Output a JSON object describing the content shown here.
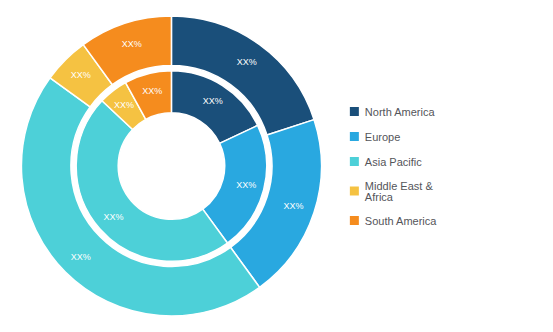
{
  "chart_data": {
    "type": "pie",
    "categories": [
      "North America",
      "Europe",
      "Asia Pacific",
      "Middle East &\nAfrica",
      "South America"
    ],
    "colors": [
      "#1a4f7a",
      "#29a8e0",
      "#4dd0d8",
      "#f5c242",
      "#f58c1e"
    ],
    "series": [
      {
        "values": [
          20,
          20,
          45,
          5,
          10
        ],
        "value_labels": [
          "XX%",
          "XX%",
          "XX%",
          "XX%",
          "XX%"
        ]
      },
      {
        "values": [
          18,
          22,
          47,
          5,
          8
        ],
        "value_labels": [
          "XX%",
          "XX%",
          "XX%",
          "XX%",
          "XX%"
        ]
      }
    ],
    "legend": "right"
  }
}
